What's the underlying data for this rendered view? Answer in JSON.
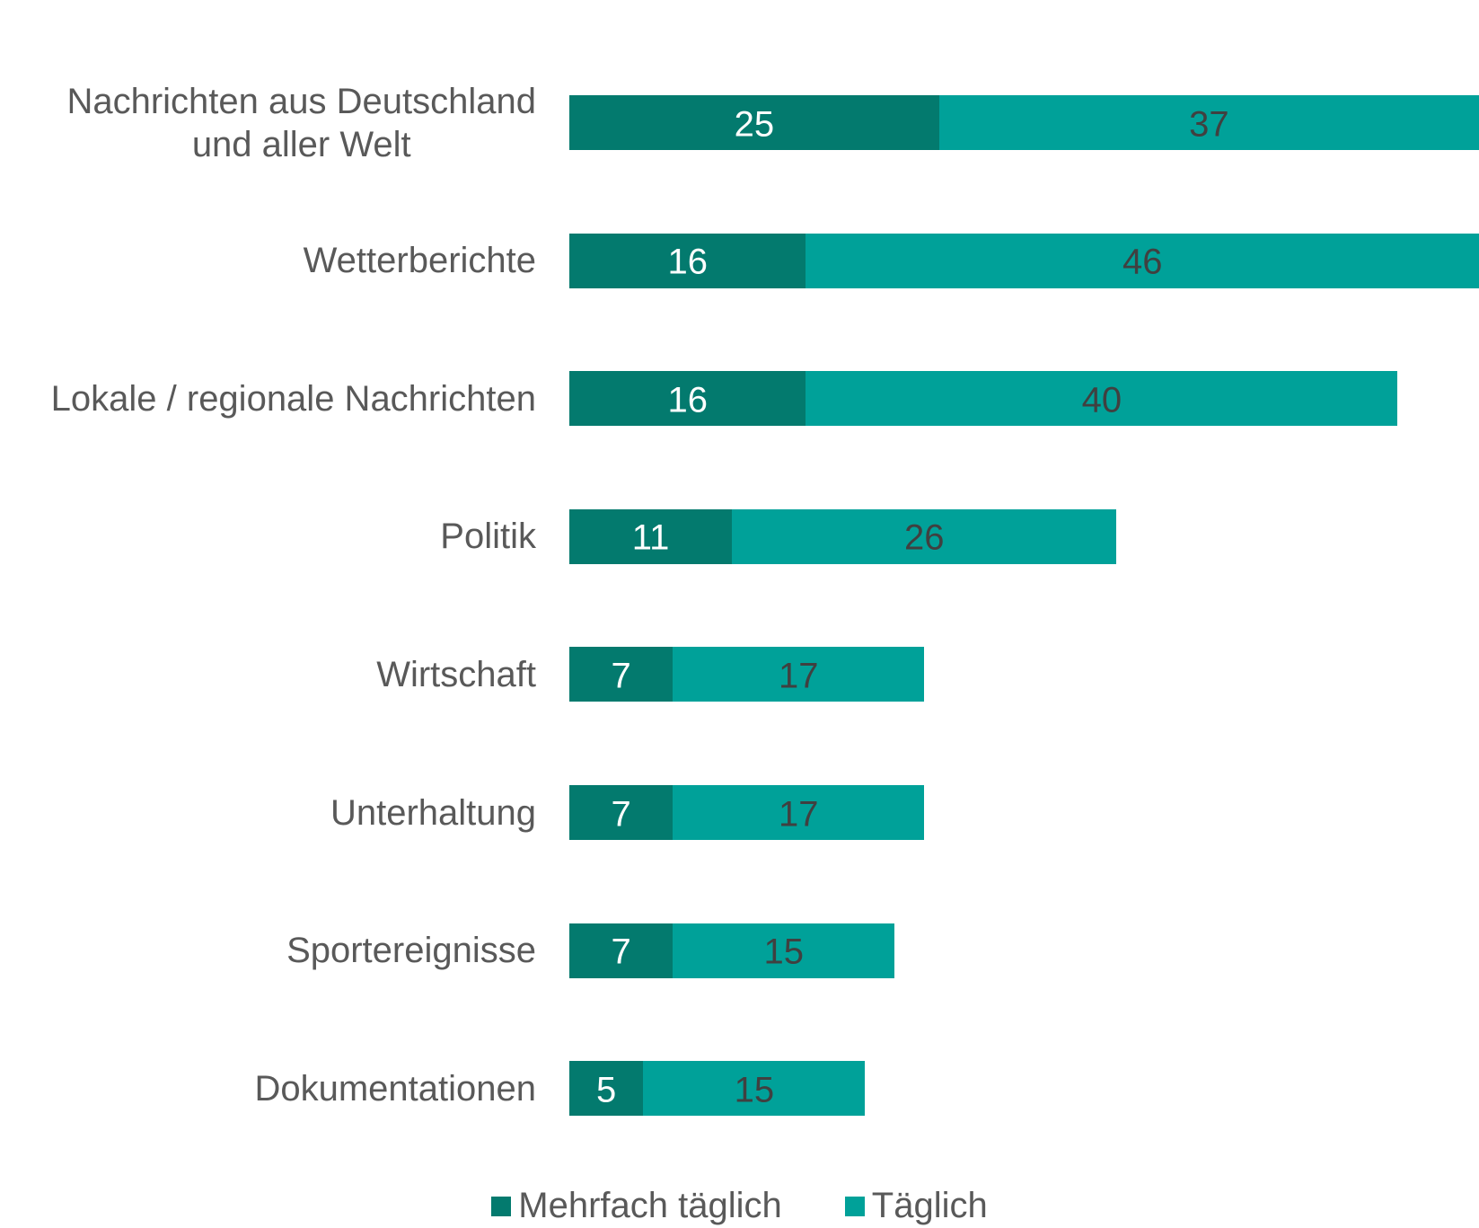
{
  "chart_data": {
    "type": "stacked-bar-horizontal",
    "categories": [
      "Nachrichten aus Deutschland\nund aller Welt",
      "Wetterberichte",
      "Lokale / regionale Nachrichten",
      "Politik",
      "Wirtschaft",
      "Unterhaltung",
      "Sportereignisse",
      "Dokumentationen"
    ],
    "series": [
      {
        "name": "Mehrfach täglich",
        "color": "#037a6e",
        "values": [
          25,
          16,
          16,
          11,
          7,
          7,
          7,
          5
        ]
      },
      {
        "name": "Täglich",
        "color": "#00a199",
        "values": [
          37,
          46,
          40,
          26,
          17,
          17,
          15,
          15
        ]
      }
    ],
    "legend": "bottom"
  }
}
